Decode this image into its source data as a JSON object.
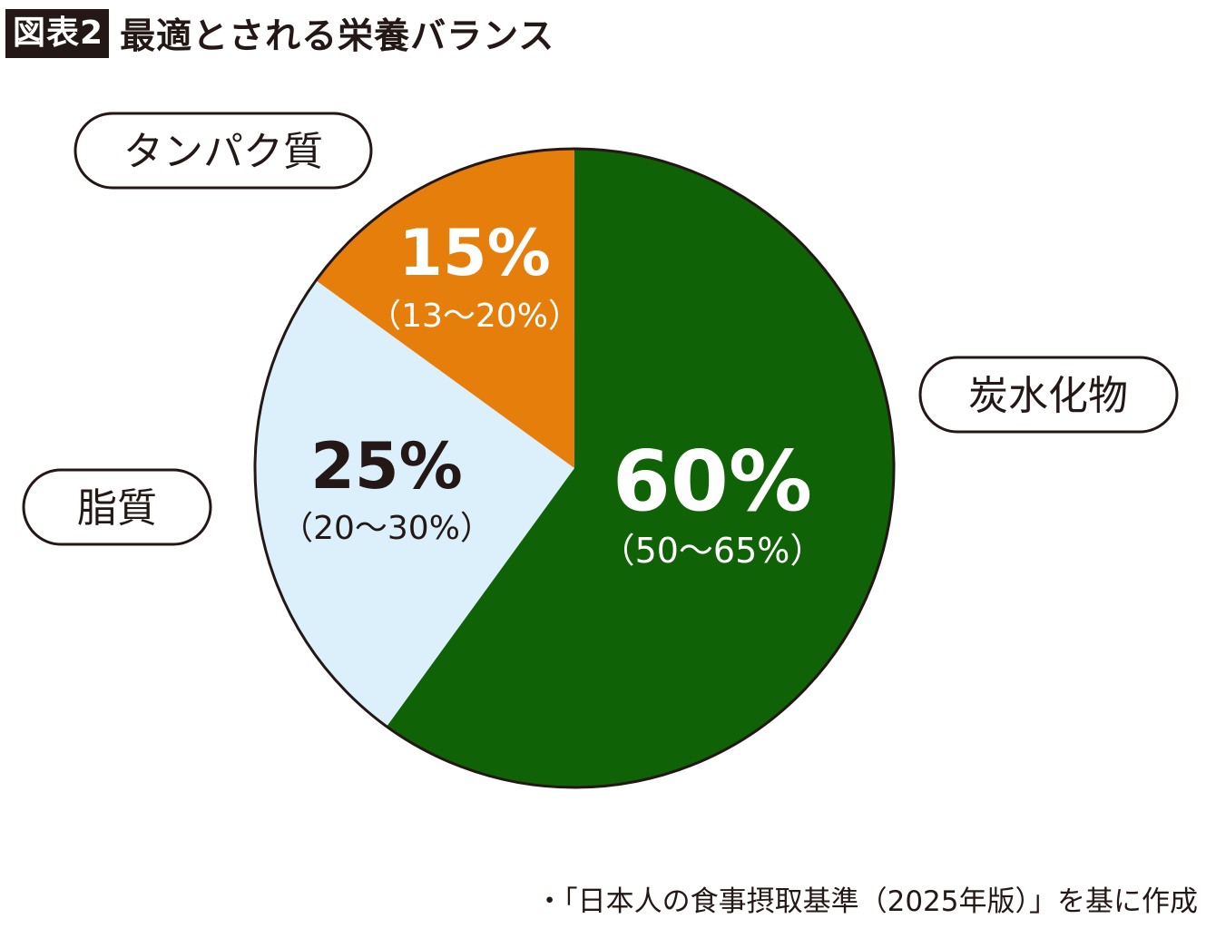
{
  "header": {
    "figure_label": "図表2",
    "title": "最適とされる栄養バランス"
  },
  "source": "・「日本人の食事摂取基準（2025年版）」を基に作成",
  "colors": {
    "carbohydrate": "#106206",
    "protein": "#e67e0c",
    "fat": "#dcf0fb",
    "outline": "#231815",
    "text_dark": "#231815",
    "text_light": "#ffffff"
  },
  "chart_data": {
    "type": "pie",
    "title": "最適とされる栄養バランス",
    "slices": [
      {
        "name": "炭水化物",
        "value": 60,
        "label": "60%",
        "range": "（50〜65%）",
        "color": "#106206"
      },
      {
        "name": "脂質",
        "value": 25,
        "label": "25%",
        "range": "（20〜30%）",
        "color": "#dcf0fb"
      },
      {
        "name": "タンパク質",
        "value": 15,
        "label": "15%",
        "range": "（13〜20%）",
        "color": "#e67e0c"
      }
    ],
    "start": "12 o'clock",
    "direction": "clockwise"
  }
}
